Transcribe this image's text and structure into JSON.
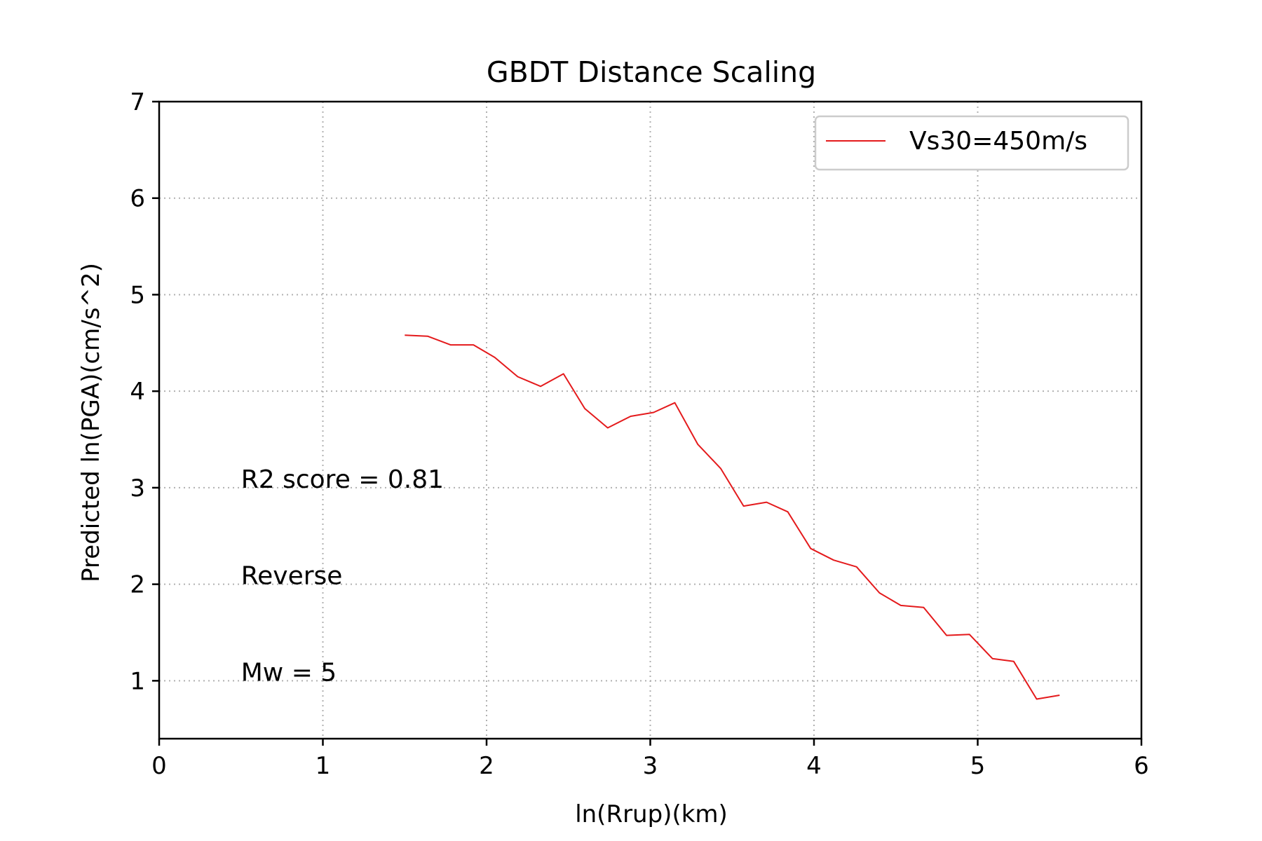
{
  "chart_data": {
    "type": "line",
    "title": "GBDT Distance Scaling",
    "xlabel": "ln(Rrup)(km)",
    "ylabel": "Predicted ln(PGA)(cm/s^2)",
    "xlim": [
      0,
      6
    ],
    "ylim": [
      0.4,
      7
    ],
    "xticks": [
      "0",
      "1",
      "2",
      "3",
      "4",
      "5",
      "6"
    ],
    "yticks": [
      "1",
      "2",
      "3",
      "4",
      "5",
      "6",
      "7"
    ],
    "grid": true,
    "legend_position": "top-right",
    "series": [
      {
        "name": "Vs30=450m/s",
        "color": "#e41a1c",
        "x": [
          1.5,
          1.64,
          1.78,
          1.92,
          2.05,
          2.19,
          2.33,
          2.47,
          2.6,
          2.74,
          2.88,
          3.02,
          3.15,
          3.29,
          3.43,
          3.57,
          3.71,
          3.84,
          3.98,
          4.12,
          4.26,
          4.4,
          4.53,
          4.67,
          4.81,
          4.95,
          5.09,
          5.22,
          5.36,
          5.5
        ],
        "y": [
          4.58,
          4.57,
          4.48,
          4.48,
          4.35,
          4.15,
          4.05,
          4.18,
          3.82,
          3.62,
          3.74,
          3.78,
          3.88,
          3.45,
          3.2,
          2.81,
          2.85,
          2.75,
          2.37,
          2.25,
          2.18,
          1.91,
          1.78,
          1.76,
          1.47,
          1.48,
          1.23,
          1.2,
          0.81,
          0.85
        ]
      }
    ],
    "annotations": [
      {
        "text": "R2 score = 0.81",
        "x": 0.5,
        "y": 3.0
      },
      {
        "text": "Reverse",
        "x": 0.5,
        "y": 2.0
      },
      {
        "text": "Mw = 5",
        "x": 0.5,
        "y": 1.0
      }
    ]
  }
}
